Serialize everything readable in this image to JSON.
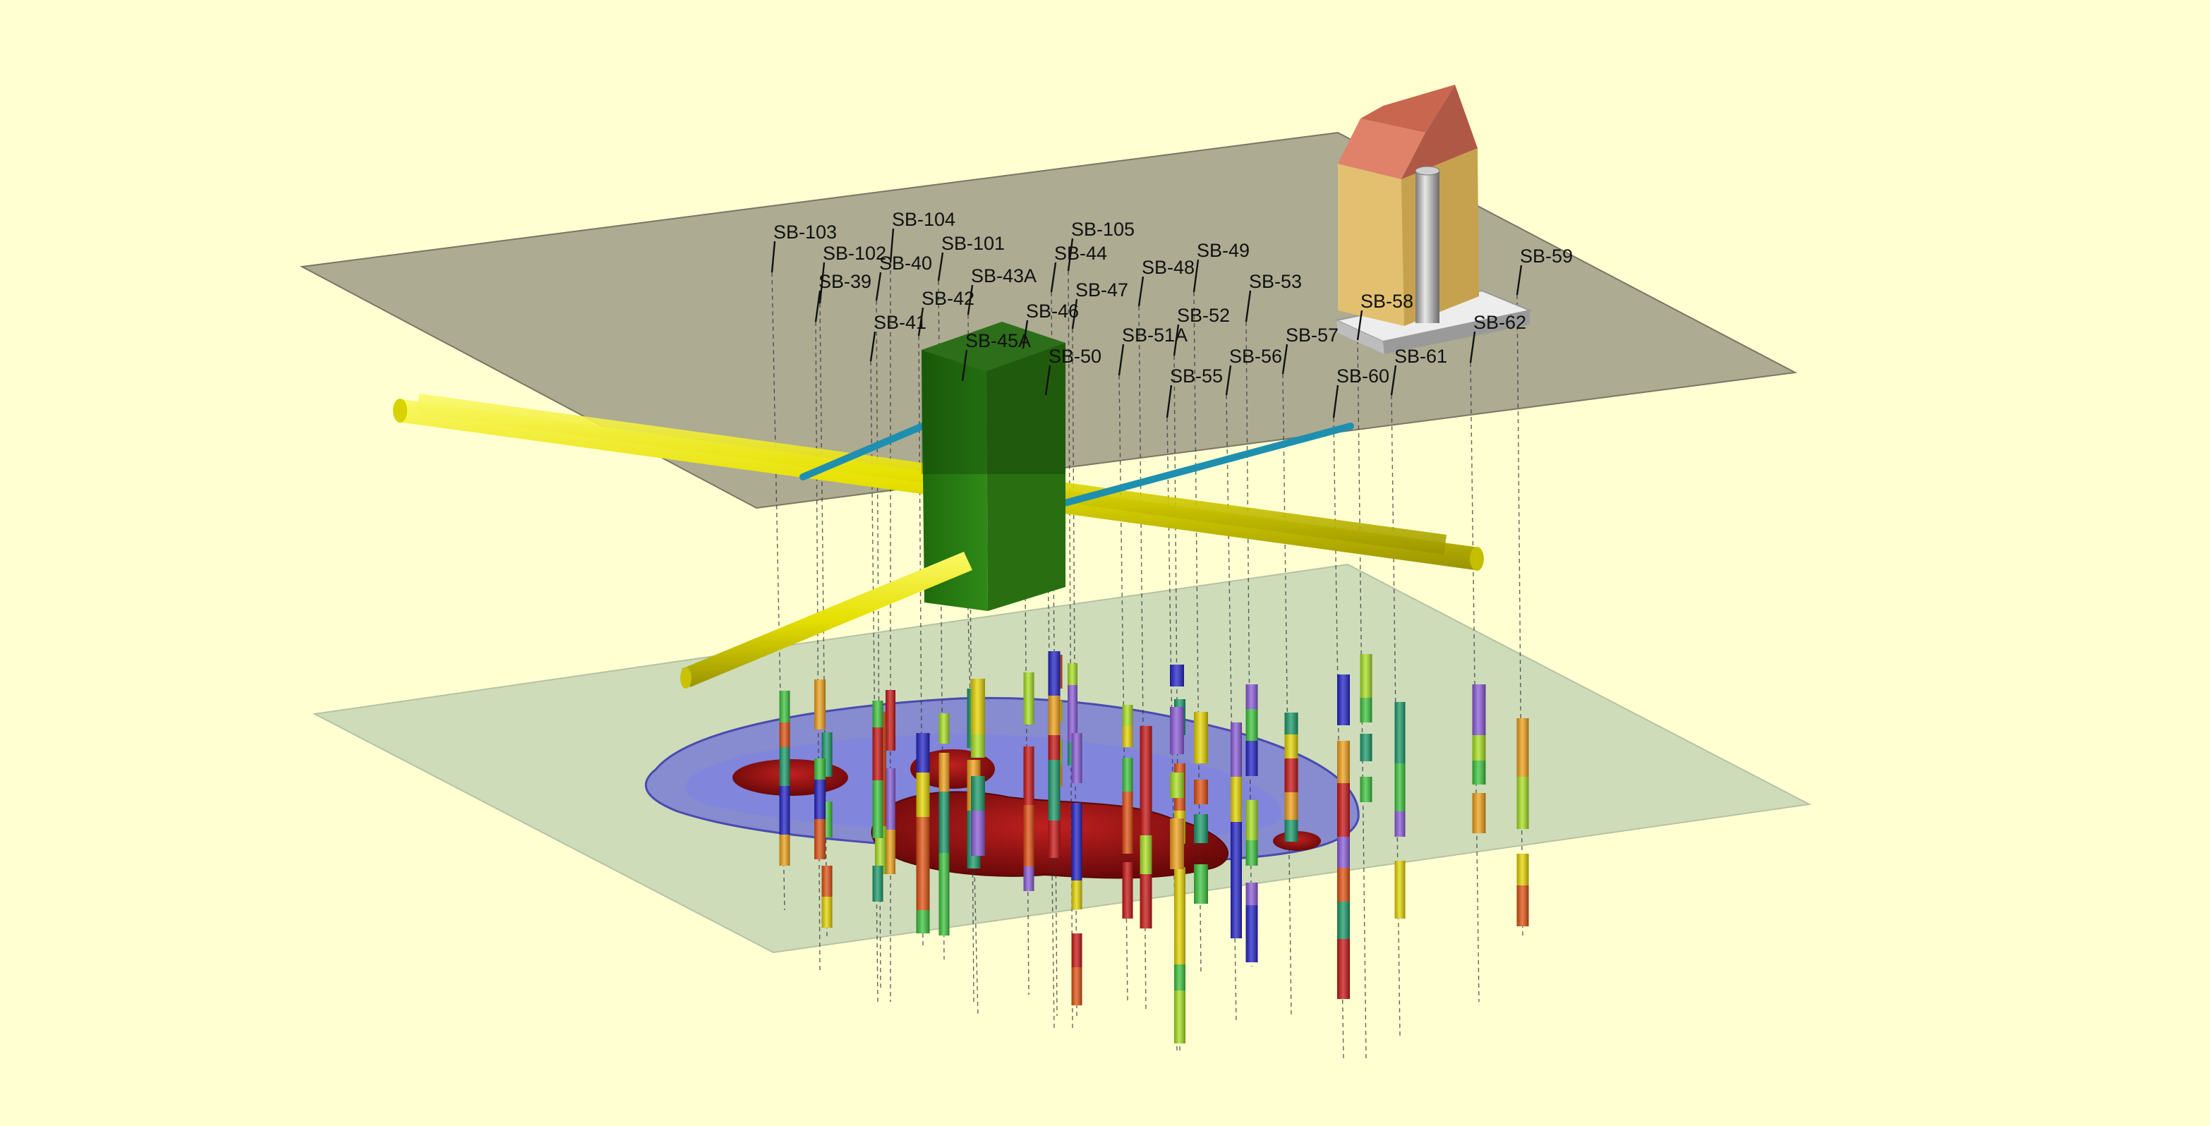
{
  "borings": [
    {
      "id": "SB-103"
    },
    {
      "id": "SB-104"
    },
    {
      "id": "SB-102"
    },
    {
      "id": "SB-101"
    },
    {
      "id": "SB-40"
    },
    {
      "id": "SB-39"
    },
    {
      "id": "SB-43A"
    },
    {
      "id": "SB-105"
    },
    {
      "id": "SB-44"
    },
    {
      "id": "SB-49"
    },
    {
      "id": "SB-48"
    },
    {
      "id": "SB-42"
    },
    {
      "id": "SB-47"
    },
    {
      "id": "SB-53"
    },
    {
      "id": "SB-46"
    },
    {
      "id": "SB-52"
    },
    {
      "id": "SB-41"
    },
    {
      "id": "SB-45A"
    },
    {
      "id": "SB-51A"
    },
    {
      "id": "SB-57"
    },
    {
      "id": "SB-58"
    },
    {
      "id": "SB-59"
    },
    {
      "id": "SB-62"
    },
    {
      "id": "SB-50"
    },
    {
      "id": "SB-56"
    },
    {
      "id": "SB-61"
    },
    {
      "id": "SB-55"
    },
    {
      "id": "SB-60"
    }
  ],
  "colors": {
    "background": "#ffffd2",
    "ground_surface": "#8e8a78",
    "lower_plane": "#c6d6b6",
    "plume_outer": "#6f70d6",
    "plume_core": "#8e1010",
    "pipe_yellow": "#e6e000",
    "pipe_blue": "#1f8fb0",
    "tank_green": "#2f7f14",
    "building_wall": "#e2c070",
    "building_roof": "#c86650",
    "concentration_scale": [
      "#2323c8",
      "#8a5ad8",
      "#1a9a6a",
      "#3cc43c",
      "#a8e020",
      "#e6d400",
      "#f0a018",
      "#e05010",
      "#c81414"
    ]
  }
}
